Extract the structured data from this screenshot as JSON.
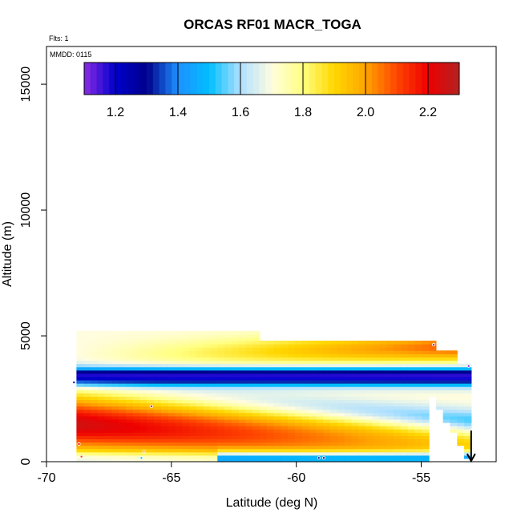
{
  "chart_data": {
    "type": "heatmap",
    "title": "ORCAS RF01 MACR_TOGA",
    "annotations": {
      "flights": "Flts: 1",
      "date": "MMDD: 0115"
    },
    "xlabel": "Latitude (deg N)",
    "ylabel": "Altitude (m)",
    "xlim": [
      -70,
      -52
    ],
    "ylim": [
      0,
      16500
    ],
    "x_ticks": [
      -70,
      -65,
      -60,
      -55
    ],
    "x_tick_labels": [
      "-70",
      "-65",
      "-60",
      "-55"
    ],
    "y_ticks": [
      0,
      5000,
      10000,
      15000
    ],
    "y_tick_labels": [
      "0",
      "5000",
      "10000",
      "15000"
    ],
    "grid": false,
    "colorbar": {
      "position": "top-inset",
      "range": [
        1.1,
        2.3
      ],
      "ticks": [
        1.2,
        1.4,
        1.6,
        1.8,
        2.0,
        2.2
      ],
      "tick_labels": [
        "1.2",
        "1.4",
        "1.6",
        "1.8",
        "2.0",
        "2.2"
      ],
      "colors": [
        "#8a2be2",
        "#0000cd",
        "#00008b",
        "#1e90ff",
        "#00bfff",
        "#b0e0ff",
        "#fffde0",
        "#ffff80",
        "#ffd700",
        "#ffa500",
        "#ff4500",
        "#ee0000",
        "#b22222"
      ]
    },
    "curtain": {
      "lat_min": -68.8,
      "lat_max": -53.0,
      "alt_min": 0,
      "alt_max": 5200
    },
    "observations": [
      {
        "lat": -68.6,
        "alt": 200,
        "value": 2.1
      },
      {
        "lat": -68.7,
        "alt": 700,
        "value": 2.2
      },
      {
        "lat": -68.9,
        "alt": 3150,
        "value": 1.2
      },
      {
        "lat": -65.8,
        "alt": 2200,
        "value": 2.2
      },
      {
        "lat": -66.1,
        "alt": 400,
        "value": 2.0
      },
      {
        "lat": -66.2,
        "alt": 150,
        "value": 1.5
      },
      {
        "lat": -59.1,
        "alt": 150,
        "value": 1.3
      },
      {
        "lat": -58.9,
        "alt": 150,
        "value": 1.3
      },
      {
        "lat": -54.5,
        "alt": 4650,
        "value": 2.2
      },
      {
        "lat": -53.1,
        "alt": 3800,
        "value": 1.1
      }
    ],
    "arrow": {
      "lat": -53.0,
      "alt": 600
    }
  }
}
